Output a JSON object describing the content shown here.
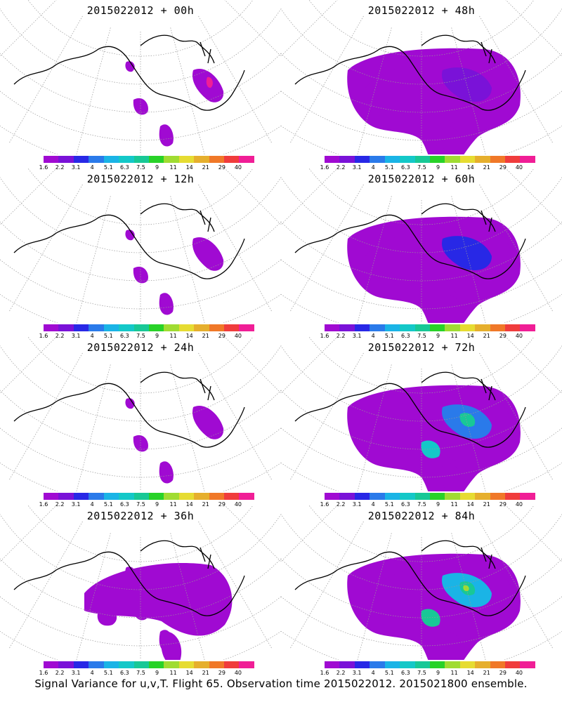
{
  "panels": [
    {
      "title": "2015022012 + 00h",
      "level": 0
    },
    {
      "title": "2015022012 + 48h",
      "level": 3
    },
    {
      "title": "2015022012 + 12h",
      "level": 1
    },
    {
      "title": "2015022012 + 60h",
      "level": 4
    },
    {
      "title": "2015022012 + 24h",
      "level": 1
    },
    {
      "title": "2015022012 + 72h",
      "level": 5
    },
    {
      "title": "2015022012 + 36h",
      "level": 2
    },
    {
      "title": "2015022012 + 84h",
      "level": 6
    }
  ],
  "colorbar": {
    "colors": [
      "#a00ad2",
      "#7a12d8",
      "#2828e6",
      "#2a7aea",
      "#1ab4e6",
      "#14c8c8",
      "#18c896",
      "#28d228",
      "#a0dc32",
      "#e6dc32",
      "#e6af2d",
      "#f07828",
      "#f03c3c",
      "#f01e96"
    ],
    "labels": [
      "1.6",
      "2.2",
      "3.1",
      "4",
      "5.1",
      "6.3",
      "7.5",
      "9",
      "11",
      "14",
      "21",
      "29",
      "40"
    ]
  },
  "footer": "Signal Variance for u,v,T. Flight 65. Observation time 2015022012. 2015021800 ensemble."
}
